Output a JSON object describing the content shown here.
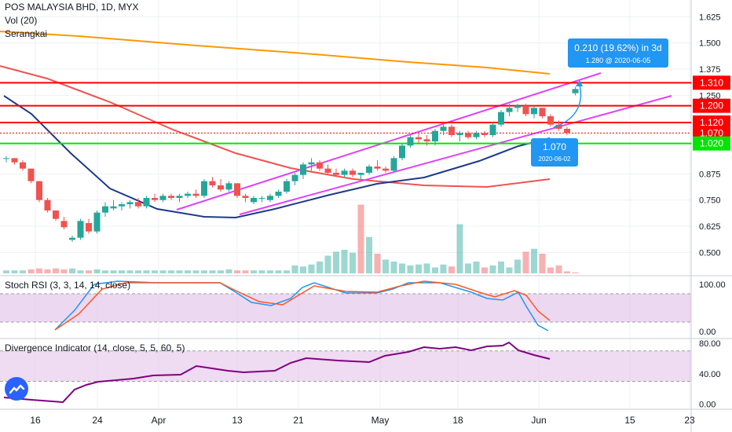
{
  "header": {
    "symbol_title": "POS MALAYSIA BHD, 1D, MYX",
    "vol_label": "Vol (20)",
    "serangkai_label": "Serangkai"
  },
  "stoch": {
    "title": "Stoch RSI (3, 3, 14, 14, close)"
  },
  "divergence": {
    "title": "Divergence Indicator (14, close, 5, 5, 60, 5)"
  },
  "colors": {
    "up": "#26a69a",
    "down": "#ef5350",
    "channel": "#e040fb",
    "ma_orange": "#ff9800",
    "ma_red": "#ef5350",
    "ma_navy": "#1e3a8a",
    "level_red": "#ff0000",
    "level_green": "#00e600",
    "callout": "#2196f3",
    "stoch_k": "#2196f3",
    "stoch_d": "#ff5722",
    "divergence": "#800080"
  },
  "chart_data": [
    {
      "type": "candlestick",
      "title": "POS MALAYSIA BHD, 1D, MYX",
      "x_tick_labels": [
        "16",
        "24",
        "Apr",
        "13",
        "21",
        "May",
        "18",
        "Jun",
        "15",
        "23"
      ],
      "y_tick_labels": [
        "1.625",
        "1.500",
        "1.375",
        "1.250",
        "0.875",
        "0.750",
        "0.625",
        "0.500"
      ],
      "ylim": [
        0.43,
        1.63
      ],
      "grid": true,
      "price_levels": [
        {
          "value": 1.31,
          "label": "1.310",
          "color": "red"
        },
        {
          "value": 1.2,
          "label": "1.200",
          "color": "red"
        },
        {
          "value": 1.12,
          "label": "1.120",
          "color": "red"
        },
        {
          "value": 1.07,
          "label": "1.070",
          "color": "red"
        },
        {
          "value": 1.02,
          "label": "1.020",
          "color": "green"
        }
      ],
      "annotations": [
        {
          "text": "0.210 (19.62%) in 3d",
          "sub": "1.280 @ 2020-06-05"
        },
        {
          "text": "1.070",
          "sub": "2020-06-02"
        }
      ],
      "ohlc": [
        [
          0.95,
          0.96,
          0.93,
          0.95
        ],
        [
          0.95,
          0.95,
          0.92,
          0.93
        ],
        [
          0.93,
          0.94,
          0.89,
          0.9
        ],
        [
          0.9,
          0.9,
          0.83,
          0.84
        ],
        [
          0.84,
          0.84,
          0.74,
          0.75
        ],
        [
          0.75,
          0.76,
          0.69,
          0.7
        ],
        [
          0.7,
          0.7,
          0.65,
          0.66
        ],
        [
          0.65,
          0.67,
          0.61,
          0.62
        ],
        [
          0.56,
          0.58,
          0.55,
          0.57
        ],
        [
          0.57,
          0.66,
          0.56,
          0.65
        ],
        [
          0.64,
          0.66,
          0.59,
          0.6
        ],
        [
          0.6,
          0.7,
          0.59,
          0.69
        ],
        [
          0.69,
          0.74,
          0.67,
          0.72
        ],
        [
          0.71,
          0.75,
          0.7,
          0.72
        ],
        [
          0.72,
          0.74,
          0.7,
          0.73
        ],
        [
          0.73,
          0.75,
          0.71,
          0.74
        ],
        [
          0.74,
          0.76,
          0.71,
          0.72
        ],
        [
          0.72,
          0.77,
          0.71,
          0.76
        ],
        [
          0.76,
          0.78,
          0.74,
          0.75
        ],
        [
          0.75,
          0.78,
          0.74,
          0.77
        ],
        [
          0.77,
          0.78,
          0.75,
          0.76
        ],
        [
          0.76,
          0.78,
          0.74,
          0.77
        ],
        [
          0.77,
          0.79,
          0.76,
          0.78
        ],
        [
          0.78,
          0.8,
          0.76,
          0.77
        ],
        [
          0.77,
          0.85,
          0.76,
          0.84
        ],
        [
          0.84,
          0.86,
          0.81,
          0.82
        ],
        [
          0.82,
          0.85,
          0.79,
          0.8
        ],
        [
          0.8,
          0.84,
          0.79,
          0.83
        ],
        [
          0.83,
          0.83,
          0.76,
          0.77
        ],
        [
          0.77,
          0.78,
          0.74,
          0.76
        ],
        [
          0.74,
          0.77,
          0.73,
          0.76
        ],
        [
          0.76,
          0.77,
          0.74,
          0.76
        ],
        [
          0.75,
          0.78,
          0.74,
          0.77
        ],
        [
          0.77,
          0.8,
          0.76,
          0.79
        ],
        [
          0.79,
          0.85,
          0.78,
          0.84
        ],
        [
          0.84,
          0.88,
          0.82,
          0.87
        ],
        [
          0.87,
          0.93,
          0.85,
          0.92
        ],
        [
          0.92,
          0.95,
          0.89,
          0.93
        ],
        [
          0.93,
          0.94,
          0.89,
          0.9
        ],
        [
          0.9,
          0.92,
          0.87,
          0.88
        ],
        [
          0.88,
          0.9,
          0.86,
          0.87
        ],
        [
          0.87,
          0.9,
          0.86,
          0.89
        ],
        [
          0.89,
          0.9,
          0.86,
          0.87
        ],
        [
          0.87,
          0.88,
          0.85,
          0.88
        ],
        [
          0.88,
          0.92,
          0.87,
          0.91
        ],
        [
          0.91,
          0.94,
          0.89,
          0.9
        ],
        [
          0.9,
          0.91,
          0.88,
          0.89
        ],
        [
          0.89,
          0.96,
          0.88,
          0.95
        ],
        [
          0.95,
          1.02,
          0.94,
          1.01
        ],
        [
          1.01,
          1.06,
          1.0,
          1.05
        ],
        [
          1.05,
          1.08,
          1.02,
          1.04
        ],
        [
          1.04,
          1.06,
          1.01,
          1.03
        ],
        [
          1.03,
          1.09,
          1.01,
          1.08
        ],
        [
          1.08,
          1.12,
          1.06,
          1.1
        ],
        [
          1.1,
          1.11,
          1.05,
          1.06
        ],
        [
          1.06,
          1.08,
          1.03,
          1.07
        ],
        [
          1.07,
          1.08,
          1.04,
          1.05
        ],
        [
          1.05,
          1.08,
          1.04,
          1.07
        ],
        [
          1.07,
          1.08,
          1.05,
          1.06
        ],
        [
          1.06,
          1.12,
          1.05,
          1.11
        ],
        [
          1.11,
          1.18,
          1.1,
          1.17
        ],
        [
          1.17,
          1.21,
          1.15,
          1.19
        ],
        [
          1.19,
          1.21,
          1.17,
          1.2
        ],
        [
          1.2,
          1.21,
          1.15,
          1.16
        ],
        [
          1.16,
          1.2,
          1.14,
          1.19
        ],
        [
          1.19,
          1.19,
          1.14,
          1.15
        ],
        [
          1.15,
          1.16,
          1.1,
          1.11
        ],
        [
          1.11,
          1.13,
          1.08,
          1.09
        ],
        [
          1.09,
          1.1,
          1.06,
          1.07
        ],
        [
          1.26,
          1.29,
          1.25,
          1.28
        ]
      ]
    },
    {
      "type": "line",
      "title": "Stoch RSI (3, 3, 14, 14, close)",
      "y_tick_labels": [
        "100.00",
        "0.00"
      ],
      "ylim": [
        -6,
        108
      ],
      "bands": [
        20,
        80
      ],
      "series": []
    },
    {
      "type": "line",
      "title": "Divergence Indicator (14, close, 5, 5, 60, 5)",
      "y_tick_labels": [
        "80.00",
        "40.00",
        "0.00"
      ],
      "ylim": [
        -6,
        86
      ],
      "bands": [
        30,
        70
      ],
      "series": []
    }
  ]
}
